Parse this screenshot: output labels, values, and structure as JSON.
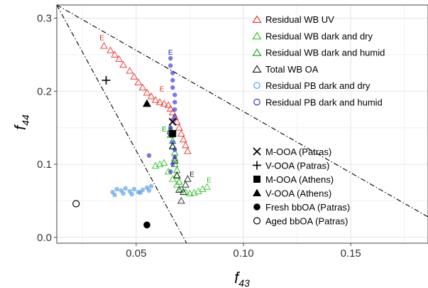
{
  "chart_data": {
    "type": "scatter",
    "xlabel": {
      "base": "f",
      "sub": "43"
    },
    "ylabel": {
      "base": "f",
      "sub": "44"
    },
    "xlim": [
      0.013,
      0.186
    ],
    "ylim": [
      -0.008,
      0.318
    ],
    "x_ticks": [
      0.05,
      0.1,
      0.15
    ],
    "x_tick_labels": [
      "0.05",
      "0.10",
      "0.15"
    ],
    "y_ticks": [
      0.0,
      0.1,
      0.2,
      0.3
    ],
    "y_tick_labels": [
      "0.0",
      "0.1",
      "0.2",
      "0.3"
    ],
    "grid": true,
    "triangle_lines": [
      {
        "name": "left-boundary",
        "from": [
          0.013,
          0.318
        ],
        "to": [
          0.0735,
          -0.008
        ],
        "style": "dash-dot"
      },
      {
        "name": "right-boundary",
        "from": [
          0.013,
          0.318
        ],
        "to": [
          0.186,
          0.028
        ],
        "style": "dash-dot"
      }
    ],
    "legend_upper": [
      {
        "label": "Residual WB UV",
        "marker": "open-triangle",
        "color": "#e8251f"
      },
      {
        "label": "Residual WB dark and dry",
        "marker": "open-triangle",
        "color": "#26c51d"
      },
      {
        "label": "Residual WB dark and humid",
        "marker": "open-triangle",
        "color": "#14a014"
      },
      {
        "label": "Total WB OA",
        "marker": "open-triangle",
        "color": "#111111"
      },
      {
        "label": "Residual PB dark and dry",
        "marker": "open-circle",
        "color": "#3f95e6"
      },
      {
        "label": "Residual PB dark and humid",
        "marker": "open-circle",
        "color": "#2020d2"
      }
    ],
    "legend_lower": [
      {
        "label": "M-OOA (Patras)",
        "marker": "x-mark"
      },
      {
        "label": "V-OOA (Patras)",
        "marker": "plus"
      },
      {
        "label": "M-OOA (Athens)",
        "marker": "filled-square"
      },
      {
        "label": "V-OOA (Athens)",
        "marker": "filled-triangle"
      },
      {
        "label": "Fresh bbOA (Patras)",
        "marker": "filled-circle"
      },
      {
        "label": "Aged bbOA (Patras)",
        "marker": "open-circle"
      }
    ],
    "series": [
      {
        "name": "Residual WB UV",
        "marker": "open-triangle",
        "color": "#e8251f",
        "x": [
          0.035,
          0.038,
          0.04,
          0.042,
          0.044,
          0.047,
          0.049,
          0.051,
          0.053,
          0.055,
          0.057,
          0.059,
          0.061,
          0.063,
          0.065,
          0.066,
          0.067,
          0.068,
          0.069,
          0.07,
          0.071,
          0.072,
          0.073,
          0.074
        ],
        "y": [
          0.262,
          0.256,
          0.25,
          0.244,
          0.236,
          0.228,
          0.22,
          0.212,
          0.205,
          0.198,
          0.193,
          0.188,
          0.185,
          0.183,
          0.181,
          0.176,
          0.171,
          0.165,
          0.158,
          0.15,
          0.142,
          0.134,
          0.126,
          0.118
        ]
      },
      {
        "name": "Residual WB dark and dry",
        "marker": "open-triangle",
        "color": "#26c51d",
        "x": [
          0.059,
          0.061,
          0.063,
          0.065,
          0.067,
          0.069,
          0.071,
          0.073,
          0.075,
          0.077,
          0.079,
          0.081,
          0.083
        ],
        "y": [
          0.098,
          0.1,
          0.102,
          0.09,
          0.08,
          0.072,
          0.066,
          0.062,
          0.06,
          0.061,
          0.063,
          0.066,
          0.069
        ]
      },
      {
        "name": "Residual WB dark and humid",
        "marker": "open-triangle",
        "color": "#14a014",
        "x": [
          0.066,
          0.066,
          0.067,
          0.067,
          0.068,
          0.068,
          0.068,
          0.069,
          0.069,
          0.07
        ],
        "y": [
          0.148,
          0.14,
          0.132,
          0.124,
          0.116,
          0.108,
          0.1,
          0.092,
          0.084,
          0.076
        ]
      },
      {
        "name": "Total WB OA",
        "marker": "open-triangle",
        "color": "#111111",
        "x": [
          0.066,
          0.067,
          0.068,
          0.069,
          0.07,
          0.071,
          0.072,
          0.073,
          0.074
        ],
        "y": [
          0.145,
          0.125,
          0.105,
          0.085,
          0.065,
          0.05,
          0.062,
          0.072,
          0.08
        ]
      },
      {
        "name": "Residual PB dark and dry",
        "marker": "filled-circle-translucent",
        "color": "#3f95e6",
        "x": [
          0.039,
          0.041,
          0.043,
          0.045,
          0.047,
          0.049,
          0.051,
          0.053,
          0.055,
          0.057,
          0.04,
          0.044,
          0.048,
          0.052,
          0.056
        ],
        "y": [
          0.062,
          0.066,
          0.064,
          0.067,
          0.063,
          0.066,
          0.062,
          0.065,
          0.068,
          0.07,
          0.058,
          0.06,
          0.059,
          0.061,
          0.064
        ]
      },
      {
        "name": "Residual PB dark and humid",
        "marker": "filled-circle-translucent",
        "color": "#2020d2",
        "x": [
          0.066,
          0.066,
          0.067,
          0.067,
          0.067,
          0.068,
          0.068,
          0.068,
          0.068,
          0.067,
          0.066,
          0.066,
          0.067,
          0.068,
          0.068,
          0.067,
          0.066,
          0.056
        ],
        "y": [
          0.245,
          0.235,
          0.225,
          0.215,
          0.205,
          0.195,
          0.185,
          0.175,
          0.165,
          0.16,
          0.15,
          0.14,
          0.13,
          0.12,
          0.11,
          0.1,
          0.09,
          0.112
        ]
      }
    ],
    "reference_points": [
      {
        "label": "M-OOA (Patras)",
        "marker": "x-mark",
        "x": 0.067,
        "y": 0.158
      },
      {
        "label": "V-OOA (Patras)",
        "marker": "plus",
        "x": 0.036,
        "y": 0.215
      },
      {
        "label": "M-OOA (Athens)",
        "marker": "filled-square",
        "x": 0.067,
        "y": 0.142
      },
      {
        "label": "V-OOA (Athens)",
        "marker": "filled-triangle",
        "x": 0.055,
        "y": 0.183
      },
      {
        "label": "Fresh bbOA (Patras)",
        "marker": "filled-circle",
        "x": 0.055,
        "y": 0.017
      },
      {
        "label": "Aged bbOA (Patras)",
        "marker": "open-circle",
        "x": 0.022,
        "y": 0.046
      }
    ],
    "annotations": [
      {
        "text": "E",
        "x": 0.034,
        "y": 0.27,
        "color": "#e8251f"
      },
      {
        "text": "E",
        "x": 0.066,
        "y": 0.25,
        "color": "#2020d2"
      },
      {
        "text": "E",
        "x": 0.062,
        "y": 0.2,
        "color": "#e8251f"
      },
      {
        "text": "E",
        "x": 0.063,
        "y": 0.145,
        "color": "#14a014"
      },
      {
        "text": "E",
        "x": 0.076,
        "y": 0.083,
        "color": "#111111"
      },
      {
        "text": "E",
        "x": 0.084,
        "y": 0.075,
        "color": "#26c51d"
      }
    ]
  }
}
